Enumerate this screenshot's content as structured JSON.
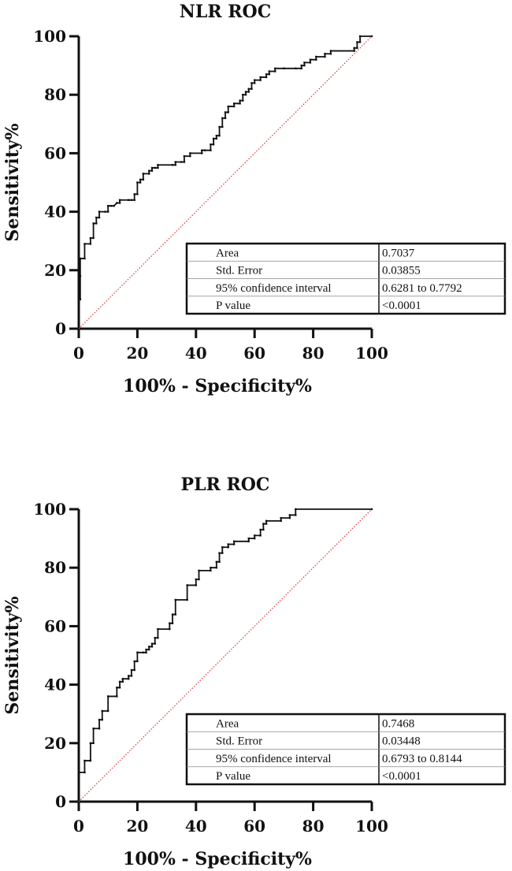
{
  "chart_data": [
    {
      "type": "line",
      "title": "NLR ROC",
      "xlabel": "100% - Specificity%",
      "ylabel": "Sensitivity%",
      "xlim": [
        0,
        100
      ],
      "ylim": [
        0,
        100
      ],
      "xticks": [
        "0",
        "20",
        "40",
        "60",
        "80",
        "100"
      ],
      "yticks": [
        "0",
        "20",
        "40",
        "60",
        "80",
        "100"
      ],
      "grid": false,
      "legend": "none",
      "series": [
        {
          "color": "#111111",
          "style": "step",
          "points": [
            [
              0,
              0
            ],
            [
              0,
              10
            ],
            [
              0.5,
              10
            ],
            [
              0.5,
              18
            ],
            [
              0.5,
              24
            ],
            [
              2,
              24
            ],
            [
              2,
              29
            ],
            [
              4,
              29
            ],
            [
              4,
              31
            ],
            [
              5,
              31
            ],
            [
              5,
              36
            ],
            [
              6,
              36
            ],
            [
              6,
              38
            ],
            [
              7,
              38
            ],
            [
              7,
              40
            ],
            [
              9,
              40
            ],
            [
              10,
              40
            ],
            [
              10,
              42
            ],
            [
              11,
              42
            ],
            [
              12,
              42
            ],
            [
              13,
              43
            ],
            [
              14,
              43
            ],
            [
              14,
              44
            ],
            [
              17,
              44
            ],
            [
              18,
              44
            ],
            [
              19,
              44
            ],
            [
              19,
              46
            ],
            [
              20,
              46
            ],
            [
              20,
              50
            ],
            [
              21,
              50
            ],
            [
              21,
              51
            ],
            [
              22,
              51
            ],
            [
              22,
              53
            ],
            [
              24,
              53
            ],
            [
              24,
              54
            ],
            [
              25,
              54
            ],
            [
              25,
              55
            ],
            [
              26,
              55
            ],
            [
              27,
              55
            ],
            [
              27,
              56
            ],
            [
              32,
              56
            ],
            [
              33,
              56
            ],
            [
              33,
              57
            ],
            [
              35,
              57
            ],
            [
              36,
              57
            ],
            [
              36,
              59
            ],
            [
              38,
              59
            ],
            [
              38,
              60
            ],
            [
              42,
              60
            ],
            [
              42,
              61
            ],
            [
              43,
              61
            ],
            [
              45,
              61
            ],
            [
              45,
              63
            ],
            [
              46,
              63
            ],
            [
              46,
              65
            ],
            [
              47,
              65
            ],
            [
              47,
              66
            ],
            [
              48,
              66
            ],
            [
              48,
              69
            ],
            [
              49,
              69
            ],
            [
              49,
              72
            ],
            [
              50,
              72
            ],
            [
              50,
              74
            ],
            [
              51,
              74
            ],
            [
              51,
              76
            ],
            [
              53,
              76
            ],
            [
              53,
              77
            ],
            [
              55,
              77
            ],
            [
              55,
              78
            ],
            [
              56,
              78
            ],
            [
              56,
              80
            ],
            [
              57,
              80
            ],
            [
              57,
              81
            ],
            [
              58,
              81
            ],
            [
              58,
              82
            ],
            [
              59,
              82
            ],
            [
              59,
              84
            ],
            [
              60,
              84
            ],
            [
              60,
              85
            ],
            [
              62,
              85
            ],
            [
              62,
              86
            ],
            [
              64,
              86
            ],
            [
              64,
              87
            ],
            [
              65,
              87
            ],
            [
              65,
              88
            ],
            [
              67,
              88
            ],
            [
              67,
              89
            ],
            [
              70,
              89
            ],
            [
              74,
              89
            ],
            [
              76,
              89
            ],
            [
              76,
              90
            ],
            [
              77,
              90
            ],
            [
              77,
              91
            ],
            [
              79,
              91
            ],
            [
              79,
              92
            ],
            [
              81,
              92
            ],
            [
              81,
              93
            ],
            [
              84,
              93
            ],
            [
              84,
              94
            ],
            [
              86,
              94
            ],
            [
              86,
              95
            ],
            [
              94,
              95
            ],
            [
              94,
              96
            ],
            [
              95,
              96
            ],
            [
              95,
              98
            ],
            [
              96,
              98
            ],
            [
              96,
              100
            ],
            [
              100,
              100
            ]
          ]
        },
        {
          "color": "#d23c3c",
          "style": "dotted",
          "points": [
            [
              0,
              0
            ],
            [
              100,
              100
            ]
          ]
        }
      ],
      "stats_table": [
        [
          "Area",
          "0.7037"
        ],
        [
          "Std. Error",
          "0.03855"
        ],
        [
          "95% confidence interval",
          "0.6281 to 0.7792"
        ],
        [
          "P value",
          "<0.0001"
        ]
      ]
    },
    {
      "type": "line",
      "title": "PLR ROC",
      "xlabel": "100% - Specificity%",
      "ylabel": "Sensitivity%",
      "xlim": [
        0,
        100
      ],
      "ylim": [
        0,
        100
      ],
      "xticks": [
        "0",
        "20",
        "40",
        "60",
        "80",
        "100"
      ],
      "yticks": [
        "0",
        "20",
        "40",
        "60",
        "80",
        "100"
      ],
      "grid": false,
      "legend": "none",
      "series": [
        {
          "color": "#111111",
          "style": "step",
          "points": [
            [
              0,
              0
            ],
            [
              0,
              10
            ],
            [
              2,
              10
            ],
            [
              2,
              14
            ],
            [
              4,
              14
            ],
            [
              4,
              20
            ],
            [
              5,
              20
            ],
            [
              5,
              25
            ],
            [
              7,
              25
            ],
            [
              7,
              28
            ],
            [
              8,
              28
            ],
            [
              8,
              31
            ],
            [
              10,
              31
            ],
            [
              10,
              36
            ],
            [
              13,
              36
            ],
            [
              13,
              39
            ],
            [
              14,
              39
            ],
            [
              14,
              41
            ],
            [
              15,
              41
            ],
            [
              15,
              42
            ],
            [
              17,
              42
            ],
            [
              17,
              43
            ],
            [
              18,
              43
            ],
            [
              18,
              45
            ],
            [
              19,
              45
            ],
            [
              19,
              48
            ],
            [
              20,
              48
            ],
            [
              20,
              51
            ],
            [
              22,
              51
            ],
            [
              23,
              51
            ],
            [
              23,
              52
            ],
            [
              24,
              52
            ],
            [
              24,
              53
            ],
            [
              25,
              53
            ],
            [
              25,
              54
            ],
            [
              26,
              54
            ],
            [
              26,
              56
            ],
            [
              27,
              56
            ],
            [
              27,
              59
            ],
            [
              31,
              59
            ],
            [
              31,
              61
            ],
            [
              32,
              61
            ],
            [
              32,
              64
            ],
            [
              33,
              64
            ],
            [
              33,
              69
            ],
            [
              37,
              69
            ],
            [
              37,
              74
            ],
            [
              40,
              74
            ],
            [
              40,
              76
            ],
            [
              41,
              76
            ],
            [
              41,
              79
            ],
            [
              45,
              79
            ],
            [
              45,
              80
            ],
            [
              47,
              80
            ],
            [
              47,
              82
            ],
            [
              48,
              82
            ],
            [
              48,
              85
            ],
            [
              49,
              85
            ],
            [
              49,
              87
            ],
            [
              51,
              87
            ],
            [
              51,
              88
            ],
            [
              53,
              88
            ],
            [
              53,
              89
            ],
            [
              58,
              89
            ],
            [
              58,
              90
            ],
            [
              60,
              90
            ],
            [
              60,
              91
            ],
            [
              62,
              91
            ],
            [
              62,
              93
            ],
            [
              63,
              93
            ],
            [
              63,
              95
            ],
            [
              64,
              95
            ],
            [
              64,
              96
            ],
            [
              69,
              96
            ],
            [
              69,
              97
            ],
            [
              72,
              97
            ],
            [
              72,
              98
            ],
            [
              74,
              98
            ],
            [
              74,
              100
            ],
            [
              100,
              100
            ]
          ]
        },
        {
          "color": "#d23c3c",
          "style": "dotted",
          "points": [
            [
              0,
              0
            ],
            [
              100,
              100
            ]
          ]
        }
      ],
      "stats_table": [
        [
          "Area",
          "0.7468"
        ],
        [
          "Std. Error",
          "0.03448"
        ],
        [
          "95% confidence interval",
          "0.6793 to 0.8144"
        ],
        [
          "P value",
          "<0.0001"
        ]
      ]
    }
  ]
}
